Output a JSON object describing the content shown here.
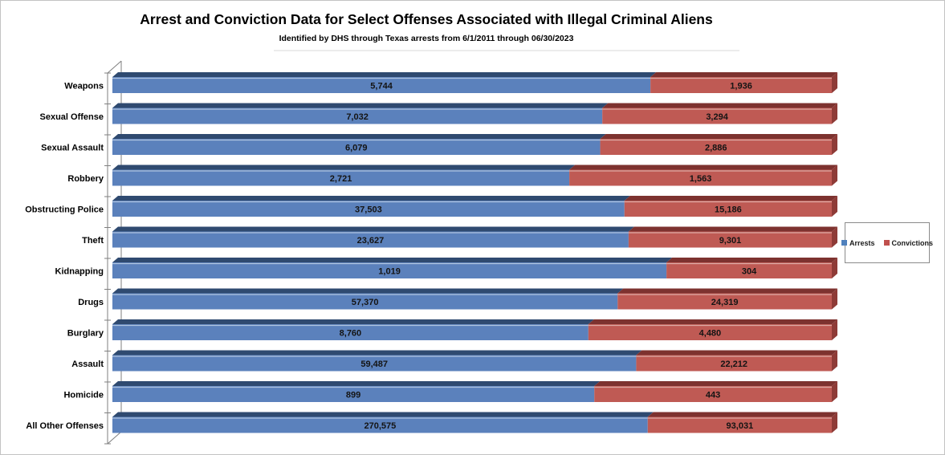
{
  "title": "Arrest and Conviction Data for Select Offenses Associated with Illegal Criminal Aliens",
  "subtitle": "Identified by DHS through Texas arrests from 6/1/2011 through 06/30/2023",
  "legend": {
    "items": [
      {
        "label": "Arrests",
        "color": "#4f81bd"
      },
      {
        "label": "Convictions",
        "color": "#c0504d"
      }
    ]
  },
  "colors": {
    "arrests_face": "#5b81bc",
    "arrests_bevel": "#2f4a70",
    "arrests_highlight": "#aec4e0",
    "convictions_face": "#bf5a54",
    "convictions_bevel": "#7d322f",
    "convictions_endcap": "#8e3b37",
    "convictions_highlight": "#ddaaa4",
    "axis_line": "#7f7f7f",
    "value_label": "#141414",
    "category_label": "#000000",
    "faint_rule": "#d9d9d9"
  },
  "chart_data": {
    "type": "bar",
    "subtype": "horizontal-100%-stacked-3d",
    "title": "Arrest and Conviction Data for Select Offenses Associated with Illegal Criminal Aliens",
    "subtitle": "Identified by DHS through Texas arrests from 6/1/2011 through 06/30/2023",
    "xlabel": "",
    "ylabel": "",
    "grid": false,
    "legend_position": "right",
    "categories": [
      "Weapons",
      "Sexual Offense",
      "Sexual Assault",
      "Robbery",
      "Obstructing Police",
      "Theft",
      "Kidnapping",
      "Drugs",
      "Burglary",
      "Assault",
      "Homicide",
      "All Other Offenses"
    ],
    "series": [
      {
        "name": "Arrests",
        "values": [
          5744,
          7032,
          6079,
          2721,
          37503,
          23627,
          1019,
          57370,
          8760,
          59487,
          899,
          270575
        ]
      },
      {
        "name": "Convictions",
        "values": [
          1936,
          3294,
          2886,
          1563,
          15186,
          9301,
          304,
          24319,
          4480,
          22212,
          443,
          93031
        ]
      }
    ],
    "note": "Each row is normalized to 100% width; data labels show raw counts"
  }
}
